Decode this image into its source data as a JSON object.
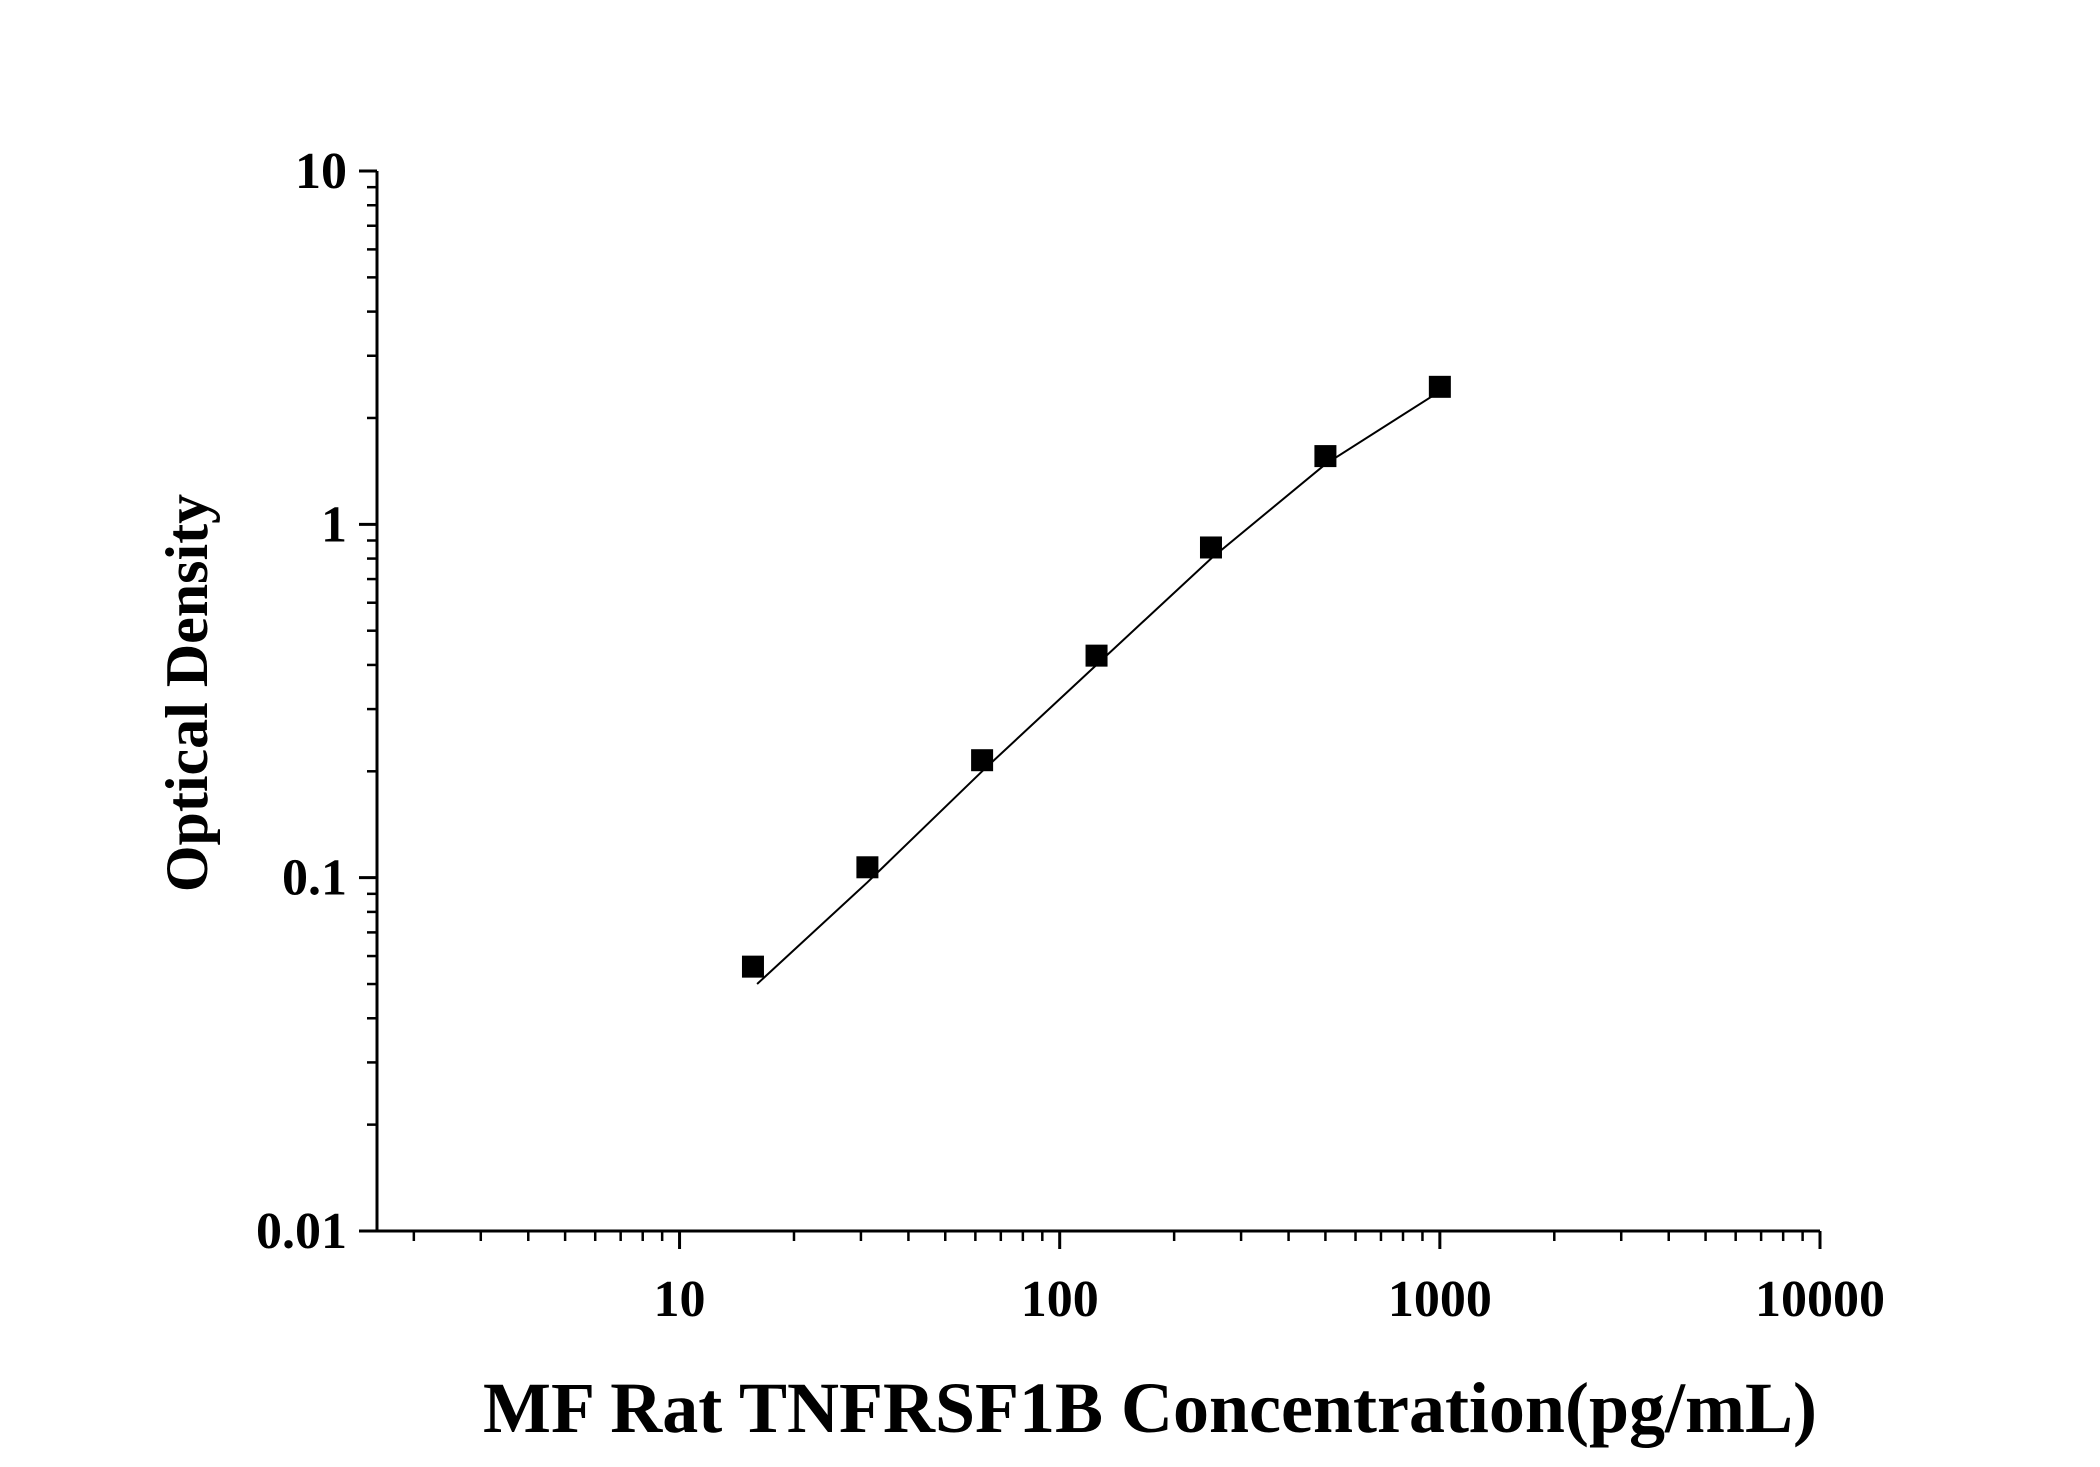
{
  "chart_data": {
    "type": "scatter",
    "title": "",
    "xlabel": "MF Rat TNFRSF1B Concentration(pg/mL)",
    "ylabel": "Optical Density",
    "xscale": "log",
    "yscale": "log",
    "xlim": [
      1.6,
      10000
    ],
    "ylim": [
      0.01,
      10
    ],
    "xticks": [
      10,
      100,
      1000,
      10000
    ],
    "xtick_labels": [
      "10",
      "100",
      "1000",
      "10000"
    ],
    "yticks": [
      0.01,
      0.1,
      1,
      10
    ],
    "ytick_labels": [
      "0.01",
      "0.1",
      "1",
      "10"
    ],
    "grid": false,
    "legend": "none",
    "marker": "square",
    "color": "#000000",
    "series": [
      {
        "x": [
          15.6,
          31.2,
          62.5,
          125,
          250,
          500,
          1000
        ],
        "y": [
          0.056,
          0.107,
          0.215,
          0.425,
          0.86,
          1.56,
          2.45
        ]
      }
    ],
    "fit_line": {
      "x": [
        16,
        31.2,
        62.5,
        125,
        250,
        500,
        1000
      ],
      "y": [
        0.05,
        0.097,
        0.2,
        0.4,
        0.8,
        1.48,
        2.38
      ]
    }
  }
}
